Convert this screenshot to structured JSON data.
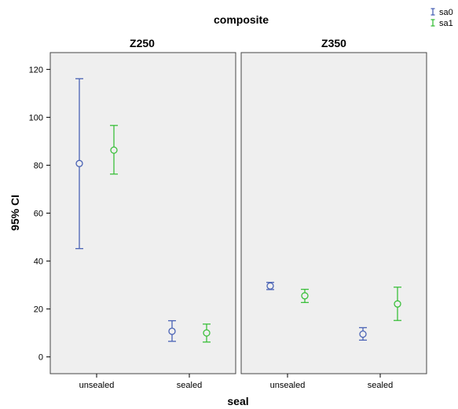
{
  "chart_data": {
    "type": "errorbar",
    "title": "composite",
    "xlabel": "seal",
    "ylabel": "95% CI",
    "ylim": [
      -7,
      127
    ],
    "yticks": [
      0,
      20,
      40,
      60,
      80,
      100,
      120
    ],
    "categories": [
      "unsealed",
      "sealed"
    ],
    "panels": [
      "Z250",
      "Z350"
    ],
    "legend": {
      "position": "top-right"
    },
    "series": [
      {
        "name": "sa0",
        "color": "#4a63b5"
      },
      {
        "name": "sa1",
        "color": "#3bbf3b"
      }
    ],
    "data": [
      {
        "panel": "Z250",
        "category": "unsealed",
        "series": "sa0",
        "mean": 80.7,
        "lower": 45.2,
        "upper": 116.1
      },
      {
        "panel": "Z250",
        "category": "unsealed",
        "series": "sa1",
        "mean": 86.3,
        "lower": 76.3,
        "upper": 96.6
      },
      {
        "panel": "Z250",
        "category": "sealed",
        "series": "sa0",
        "mean": 10.7,
        "lower": 6.5,
        "upper": 15.1
      },
      {
        "panel": "Z250",
        "category": "sealed",
        "series": "sa1",
        "mean": 10.0,
        "lower": 6.2,
        "upper": 13.7
      },
      {
        "panel": "Z350",
        "category": "unsealed",
        "series": "sa0",
        "mean": 29.6,
        "lower": 28.1,
        "upper": 31.1
      },
      {
        "panel": "Z350",
        "category": "unsealed",
        "series": "sa1",
        "mean": 25.5,
        "lower": 22.7,
        "upper": 28.2
      },
      {
        "panel": "Z350",
        "category": "sealed",
        "series": "sa0",
        "mean": 9.5,
        "lower": 7.0,
        "upper": 12.2
      },
      {
        "panel": "Z350",
        "category": "sealed",
        "series": "sa1",
        "mean": 22.1,
        "lower": 15.2,
        "upper": 29.1
      }
    ]
  }
}
